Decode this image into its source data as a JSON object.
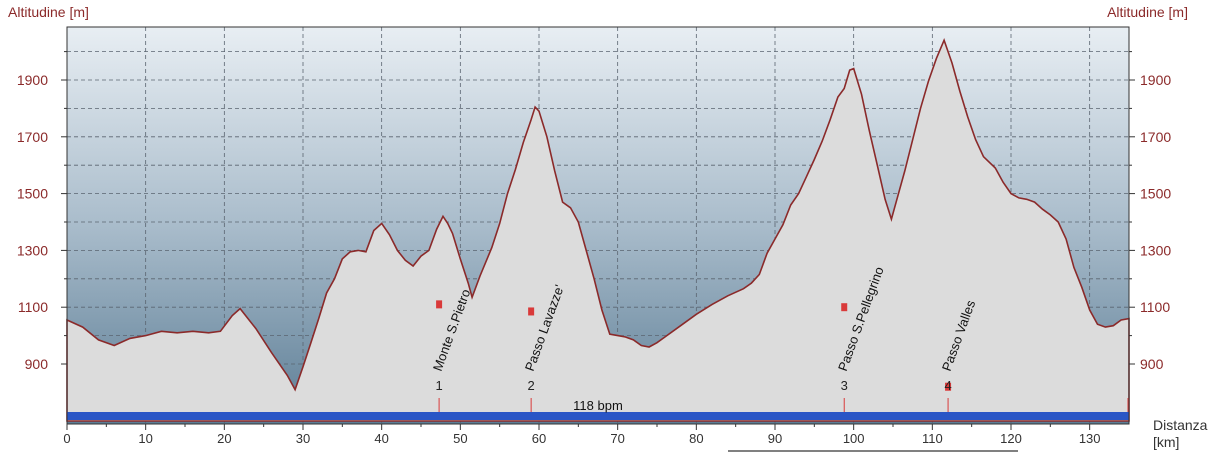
{
  "chart_data": {
    "type": "area",
    "ylabel_left": "Altitudine [m]",
    "ylabel_right": "Altitudine [m]",
    "xlabel_line1": "Distanza",
    "xlabel_line2": "[km]",
    "xlim": [
      0,
      135
    ],
    "ylim": [
      800,
      2050
    ],
    "y_ticks": [
      900,
      1100,
      1300,
      1500,
      1700,
      1900
    ],
    "x_ticks": [
      0,
      10,
      20,
      30,
      40,
      50,
      60,
      70,
      80,
      90,
      100,
      110,
      120,
      130
    ],
    "grid": true,
    "colors": {
      "profile_line": "#8b2a2a",
      "profile_fill": "#dcdcdc",
      "sky_top": "#e8eef3",
      "sky_bottom": "#5c7d95",
      "y_tick_text": "#8b2a2a",
      "marker": "#d93a3a",
      "bar": "#2a56c6"
    },
    "annotation": "118 bpm",
    "waypoints": [
      {
        "num": "1",
        "name": "Monte S.Pietro",
        "km": 47.3,
        "marker_alt": 1110
      },
      {
        "num": "2",
        "name": "Passo Lavazze'",
        "km": 59.0,
        "marker_alt": 1085
      },
      {
        "num": "3",
        "name": "Passo S.Pellegrino",
        "km": 98.8,
        "marker_alt": 1100
      },
      {
        "num": "4",
        "name": "Passo Valles",
        "km": 112.0,
        "marker_alt": 820
      }
    ],
    "series": [
      {
        "points": [
          [
            0,
            1055
          ],
          [
            2,
            1030
          ],
          [
            4,
            985
          ],
          [
            6,
            965
          ],
          [
            8,
            990
          ],
          [
            10,
            1000
          ],
          [
            12,
            1015
          ],
          [
            14,
            1010
          ],
          [
            16,
            1015
          ],
          [
            18,
            1010
          ],
          [
            19.5,
            1015
          ],
          [
            21,
            1070
          ],
          [
            22,
            1095
          ],
          [
            24,
            1025
          ],
          [
            26,
            940
          ],
          [
            28,
            860
          ],
          [
            29,
            810
          ],
          [
            30,
            890
          ],
          [
            31,
            975
          ],
          [
            32,
            1060
          ],
          [
            33,
            1150
          ],
          [
            34,
            1200
          ],
          [
            35,
            1270
          ],
          [
            36,
            1295
          ],
          [
            37,
            1300
          ],
          [
            38,
            1295
          ],
          [
            39,
            1370
          ],
          [
            40,
            1395
          ],
          [
            41,
            1355
          ],
          [
            42,
            1300
          ],
          [
            43,
            1265
          ],
          [
            44,
            1245
          ],
          [
            45,
            1280
          ],
          [
            46,
            1300
          ],
          [
            47,
            1375
          ],
          [
            47.8,
            1420
          ],
          [
            48.4,
            1395
          ],
          [
            49,
            1360
          ],
          [
            50,
            1270
          ],
          [
            51,
            1185
          ],
          [
            51.5,
            1135
          ],
          [
            52.5,
            1210
          ],
          [
            54,
            1310
          ],
          [
            55,
            1395
          ],
          [
            56,
            1500
          ],
          [
            57,
            1585
          ],
          [
            58,
            1680
          ],
          [
            59,
            1760
          ],
          [
            59.5,
            1805
          ],
          [
            60,
            1790
          ],
          [
            61,
            1700
          ],
          [
            62,
            1580
          ],
          [
            63,
            1470
          ],
          [
            64,
            1450
          ],
          [
            65,
            1400
          ],
          [
            66,
            1300
          ],
          [
            67,
            1200
          ],
          [
            68,
            1090
          ],
          [
            69,
            1005
          ],
          [
            70,
            1000
          ],
          [
            71,
            995
          ],
          [
            72,
            985
          ],
          [
            73,
            965
          ],
          [
            74,
            960
          ],
          [
            75,
            975
          ],
          [
            76,
            995
          ],
          [
            78,
            1035
          ],
          [
            80,
            1075
          ],
          [
            82,
            1110
          ],
          [
            84,
            1140
          ],
          [
            86,
            1165
          ],
          [
            87,
            1185
          ],
          [
            88,
            1215
          ],
          [
            89,
            1290
          ],
          [
            90,
            1340
          ],
          [
            91,
            1390
          ],
          [
            92,
            1460
          ],
          [
            93,
            1500
          ],
          [
            94,
            1560
          ],
          [
            95,
            1620
          ],
          [
            96,
            1685
          ],
          [
            97,
            1760
          ],
          [
            98,
            1840
          ],
          [
            98.8,
            1870
          ],
          [
            99.5,
            1935
          ],
          [
            100,
            1940
          ],
          [
            101,
            1850
          ],
          [
            102,
            1720
          ],
          [
            103,
            1600
          ],
          [
            104,
            1480
          ],
          [
            104.8,
            1410
          ],
          [
            105.5,
            1480
          ],
          [
            106.5,
            1580
          ],
          [
            107.5,
            1690
          ],
          [
            108.5,
            1800
          ],
          [
            109.5,
            1895
          ],
          [
            110.5,
            1975
          ],
          [
            111.5,
            2040
          ],
          [
            112.5,
            1960
          ],
          [
            113.5,
            1860
          ],
          [
            114.5,
            1770
          ],
          [
            115.5,
            1690
          ],
          [
            116.5,
            1630
          ],
          [
            118,
            1590
          ],
          [
            119,
            1540
          ],
          [
            120,
            1500
          ],
          [
            121,
            1485
          ],
          [
            122,
            1480
          ],
          [
            123,
            1470
          ],
          [
            124,
            1445
          ],
          [
            125,
            1425
          ],
          [
            126,
            1400
          ],
          [
            127,
            1340
          ],
          [
            128,
            1240
          ],
          [
            129,
            1170
          ],
          [
            130,
            1090
          ],
          [
            131,
            1040
          ],
          [
            132,
            1030
          ],
          [
            133,
            1035
          ],
          [
            134,
            1055
          ],
          [
            135,
            1060
          ]
        ]
      }
    ]
  }
}
